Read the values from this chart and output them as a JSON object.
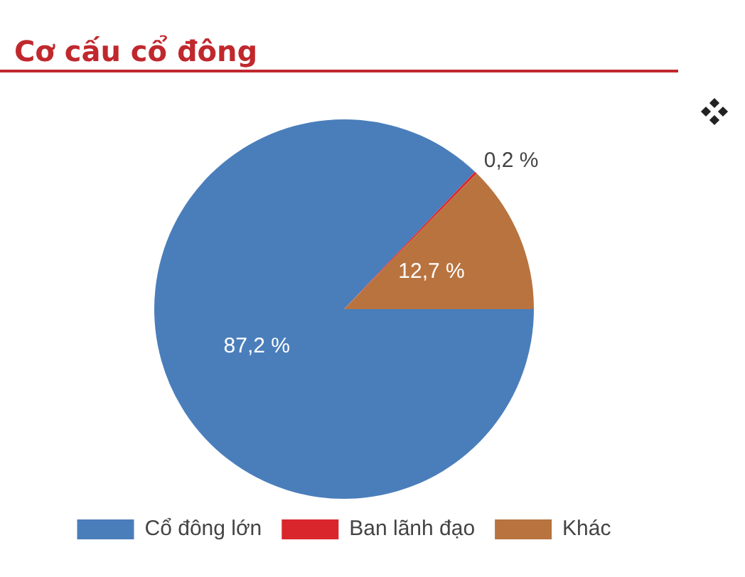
{
  "chart_data": {
    "type": "pie",
    "title": "Cơ cấu cổ đông",
    "categories": [
      "Cổ đông lớn",
      "Ban lãnh đạo",
      "Khác"
    ],
    "values": [
      87.2,
      0.2,
      12.7
    ],
    "colors": [
      "#4a7ebb",
      "#d9262c",
      "#b8733f"
    ],
    "value_labels": [
      "87,2 %",
      "0,2 %",
      "12,7 %"
    ],
    "legend": "bottom"
  }
}
